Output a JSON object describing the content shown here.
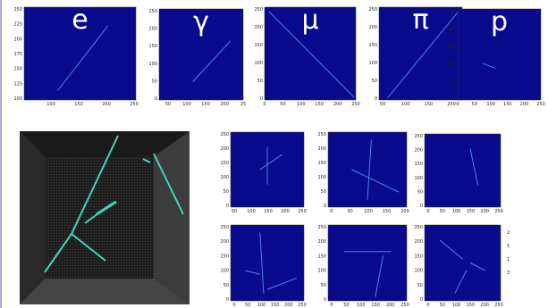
{
  "top_panels": [
    {
      "label": "e",
      "xticks": [
        100,
        150,
        200,
        250
      ],
      "yticks": [
        100,
        125,
        150,
        175,
        200,
        225,
        250
      ]
    },
    {
      "label": "γ",
      "xticks": [
        50,
        100,
        150,
        200,
        25
      ],
      "yticks": [
        0,
        50,
        100,
        150,
        200,
        250
      ]
    },
    {
      "label": "μ",
      "xticks": [
        0,
        50,
        100,
        150,
        200,
        250
      ],
      "yticks": [
        0,
        50,
        100,
        150,
        200,
        250
      ]
    },
    {
      "label": "π",
      "xticks": [
        50,
        100,
        150,
        200
      ],
      "yticks": [
        0,
        50,
        100,
        150,
        200,
        250
      ]
    },
    {
      "label": "p",
      "xticks": [
        0,
        50,
        100,
        150,
        200,
        250
      ],
      "yticks": [
        0,
        50,
        100,
        150,
        200,
        250
      ]
    }
  ],
  "bottom_panels": [
    {
      "xticks": [
        50,
        100,
        150,
        200,
        250
      ],
      "yticks": [
        0,
        50,
        100,
        150,
        200,
        250
      ]
    },
    {
      "xticks": [
        0,
        50,
        100,
        150,
        200
      ],
      "yticks": [
        0,
        50,
        100,
        150,
        200,
        250
      ]
    },
    {
      "xticks": [
        0,
        50,
        100,
        150,
        200,
        250
      ],
      "yticks": [
        0,
        50,
        100,
        150,
        200,
        250
      ]
    },
    {
      "xticks": [
        0,
        50,
        100,
        150,
        200,
        250
      ],
      "yticks": [
        0,
        50,
        100,
        150,
        200,
        250
      ]
    },
    {
      "xticks": [
        0,
        50,
        100,
        150,
        200,
        250
      ],
      "yticks": [
        0,
        50,
        100,
        150,
        200,
        250
      ]
    },
    {
      "xticks": [
        0,
        50,
        100,
        150,
        200,
        250
      ],
      "yticks": [
        0,
        50,
        100,
        150,
        200,
        250
      ]
    }
  ],
  "side_labels": [
    "2",
    "1",
    "1",
    "3"
  ]
}
